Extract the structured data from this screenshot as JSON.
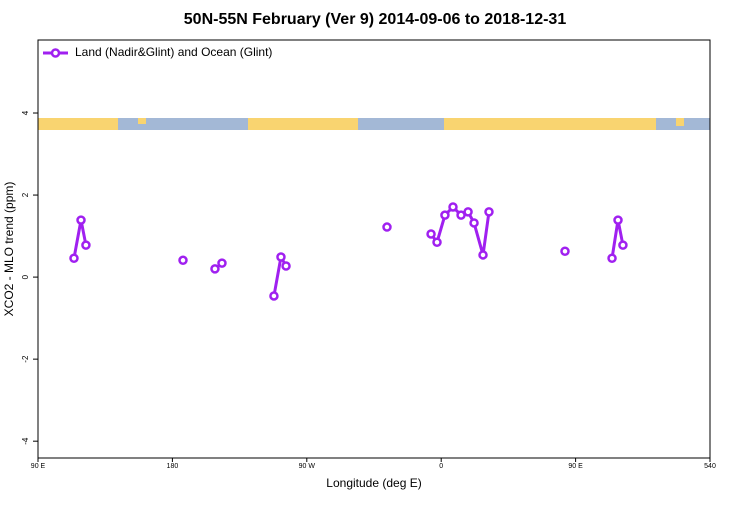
{
  "chart_data": {
    "type": "line",
    "title": "50N-55N February (Ver 9)   2014-09-06 to 2018-12-31",
    "xlabel": "Longitude (deg E)",
    "ylabel": "XCO2 - MLO trend (ppm)",
    "xlim": [
      90,
      540
    ],
    "xticks": [
      {
        "value": 90,
        "label": "90 E"
      },
      180,
      {
        "value": 270,
        "label": "90 W"
      },
      {
        "value": 360,
        "label": "0"
      },
      {
        "value": 450,
        "label": "90 E"
      },
      540
    ],
    "ylim": [
      -4.41,
      5.78
    ],
    "yticks": [
      -4,
      -2,
      0,
      2,
      4
    ],
    "legend": "top-left",
    "series": [
      {
        "name": "Land (Nadir&Glint) and Ocean (Glint)",
        "color": "#a020f0",
        "x": [
          114.1,
          118.8,
          122.1,
          null,
          187.1,
          null,
          208.5,
          213.2,
          null,
          248.0,
          252.7,
          256.1,
          null,
          323.7,
          null,
          353.2,
          357.2,
          362.5,
          367.9,
          373.3,
          378.0,
          382.0,
          388.0,
          392.0,
          null,
          442.9,
          null,
          474.4,
          478.4,
          481.7
        ],
        "values": [
          0.46,
          1.39,
          0.78,
          null,
          0.41,
          null,
          0.2,
          0.34,
          null,
          -0.46,
          0.49,
          0.27,
          null,
          1.22,
          null,
          1.05,
          0.85,
          1.51,
          1.71,
          1.51,
          1.59,
          1.32,
          0.54,
          1.59,
          null,
          0.63,
          null,
          0.46,
          1.39,
          0.78
        ]
      }
    ]
  }
}
